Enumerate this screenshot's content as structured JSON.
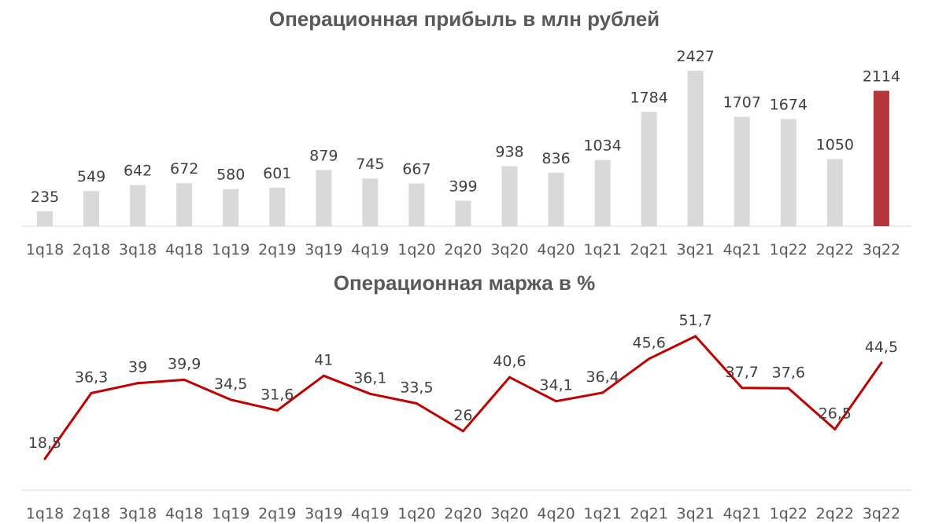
{
  "colors": {
    "bar": "#d9d9d9",
    "bar_highlight": "#b4373d",
    "line": "#c00000",
    "axis": "#d9d9d9",
    "text": "#404040",
    "title": "#595959"
  },
  "chart_data": [
    {
      "type": "bar",
      "title": "Операционная прибыль в млн рублей",
      "categories": [
        "1q18",
        "2q18",
        "3q18",
        "4q18",
        "1q19",
        "2q19",
        "3q19",
        "4q19",
        "1q20",
        "2q20",
        "3q20",
        "4q20",
        "1q21",
        "2q21",
        "3q21",
        "4q21",
        "1q22",
        "2q22",
        "3q22"
      ],
      "values": [
        235,
        549,
        642,
        672,
        580,
        601,
        879,
        745,
        667,
        399,
        938,
        836,
        1034,
        1784,
        2427,
        1707,
        1674,
        1050,
        2114
      ],
      "labels": [
        "235",
        "549",
        "642",
        "672",
        "580",
        "601",
        "879",
        "745",
        "667",
        "399",
        "938",
        "836",
        "1034",
        "1784",
        "2427",
        "1707",
        "1674",
        "1050",
        "2114"
      ],
      "highlight_index": 18,
      "ylim": [
        0,
        2427
      ]
    },
    {
      "type": "line",
      "title": "Операционная маржа в %",
      "categories": [
        "1q18",
        "2q18",
        "3q18",
        "4q18",
        "1q19",
        "2q19",
        "3q19",
        "4q19",
        "1q20",
        "2q20",
        "3q20",
        "4q20",
        "1q21",
        "2q21",
        "3q21",
        "4q21",
        "1q22",
        "2q22",
        "3q22"
      ],
      "values": [
        18.5,
        36.3,
        39,
        39.9,
        34.5,
        31.6,
        41,
        36.1,
        33.5,
        26,
        40.6,
        34.1,
        36.4,
        45.6,
        51.7,
        37.7,
        37.6,
        26.5,
        44.5
      ],
      "labels": [
        "18,5",
        "36,3",
        "39",
        "39,9",
        "34,5",
        "31,6",
        "41",
        "36,1",
        "33,5",
        "26",
        "40,6",
        "34,1",
        "36,4",
        "45,6",
        "51,7",
        "37,7",
        "37,6",
        "26,5",
        "44,5"
      ]
    }
  ]
}
